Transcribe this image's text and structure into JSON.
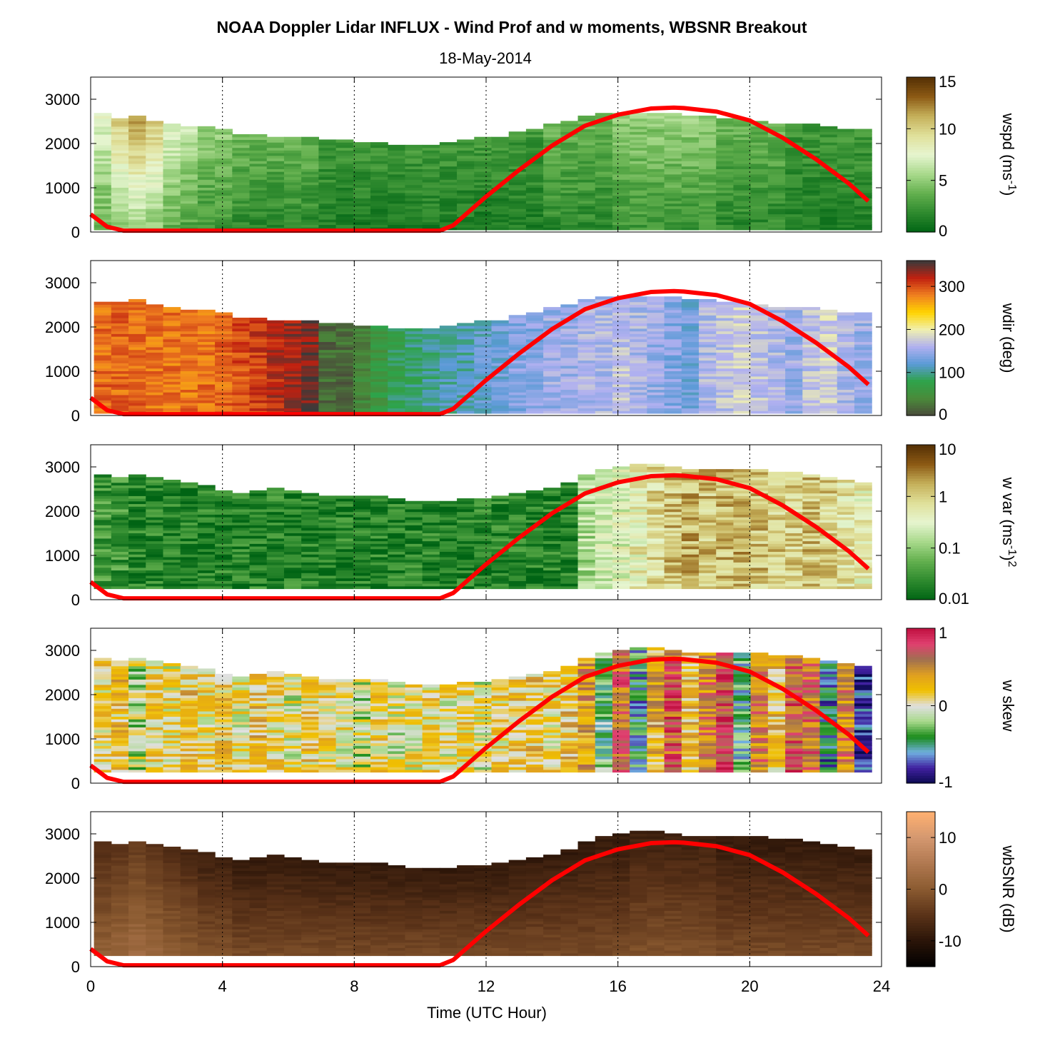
{
  "title": "NOAA Doppler Lidar INFLUX - Wind Prof and w moments, WBSNR Breakout",
  "subtitle": "18-May-2014",
  "chart_data": {
    "type": "heatmap",
    "xlabel": "Time (UTC Hour)",
    "xlim": [
      0,
      24
    ],
    "x_ticks": [
      "0",
      "4",
      "8",
      "12",
      "16",
      "20",
      "24"
    ],
    "ylim": [
      0,
      3500
    ],
    "y_ticks": [
      "0",
      "1000",
      "2000",
      "3000"
    ],
    "vertical_dotted_lines_at": [
      4,
      8,
      12,
      16,
      20,
      24
    ],
    "overlay_line": {
      "color": "#ff0000",
      "x": [
        0,
        0.5,
        1,
        2,
        4,
        8,
        10.6,
        11,
        12,
        13,
        14,
        15,
        16,
        17,
        17.7,
        18,
        19,
        20,
        21,
        22,
        23,
        23.6
      ],
      "y": [
        400,
        120,
        30,
        30,
        30,
        30,
        30,
        150,
        800,
        1400,
        1950,
        2400,
        2650,
        2790,
        2810,
        2800,
        2720,
        2520,
        2130,
        1650,
        1100,
        700
      ]
    },
    "panels": [
      {
        "name": "wspd",
        "colorbar_label": "wspd (ms",
        "colorbar_sup": "-1",
        "colorbar_tail": ")",
        "colorbar_ticks": [
          "15",
          "10",
          "5",
          "0"
        ],
        "colormap": [
          "#006414",
          "#2e8a2e",
          "#63b04e",
          "#a8d98b",
          "#e6f5d0",
          "#e0e09a",
          "#c5b05a",
          "#8c5a14",
          "#543005"
        ],
        "scale": "linear",
        "range": [
          0,
          15
        ],
        "top_height": [
          2650,
          2550,
          2600,
          2500,
          2450,
          2350,
          2350,
          2300,
          2200,
          2200,
          2150,
          2150,
          2100,
          2050,
          2050,
          2000,
          2000,
          1950,
          1950,
          1950,
          2000,
          2050,
          2100,
          2150,
          2250,
          2300,
          2400,
          2500,
          2600,
          2650,
          2650,
          2650,
          2650,
          2650,
          2600,
          2600,
          2550,
          2550,
          2500,
          2450,
          2400,
          2400,
          2350,
          2300,
          2300
        ],
        "values": [
          6,
          8,
          9,
          8,
          6,
          5,
          4,
          4,
          3,
          3,
          3,
          3,
          3,
          2,
          2,
          2,
          2,
          2,
          2,
          2,
          2,
          2,
          2,
          2,
          2,
          2,
          3,
          3,
          3,
          3,
          4,
          4,
          4,
          4,
          4,
          4,
          3,
          3,
          3,
          3,
          2,
          2,
          2,
          2,
          2
        ]
      },
      {
        "name": "wdir",
        "colorbar_label": "wdir (deg)",
        "colorbar_sup": "",
        "colorbar_tail": "",
        "colorbar_ticks": [
          "300",
          "200",
          "100",
          "0"
        ],
        "colormap": [
          "#4a4a3a",
          "#4a8a3a",
          "#2ea34a",
          "#5a9ad6",
          "#b0b0f0",
          "#f0f0b0",
          "#ffd400",
          "#f08020",
          "#c02010",
          "#3a3a3a"
        ],
        "scale": "linear",
        "range": [
          0,
          360
        ],
        "top_height": [
          2550,
          2550,
          2600,
          2500,
          2450,
          2350,
          2350,
          2300,
          2200,
          2200,
          2150,
          2150,
          2100,
          2050,
          2050,
          2000,
          2000,
          1950,
          1950,
          1950,
          2000,
          2050,
          2100,
          2150,
          2250,
          2300,
          2400,
          2500,
          2600,
          2650,
          2650,
          2650,
          2650,
          2650,
          2600,
          2600,
          2550,
          2550,
          2500,
          2450,
          2400,
          2400,
          2350,
          2300,
          2300
        ],
        "values": [
          290,
          290,
          290,
          285,
          285,
          285,
          285,
          290,
          300,
          310,
          320,
          330,
          340,
          20,
          20,
          40,
          60,
          80,
          90,
          100,
          110,
          110,
          120,
          130,
          140,
          140,
          150,
          150,
          160,
          160,
          170,
          160,
          150,
          140,
          130,
          160,
          170,
          180,
          170,
          160,
          150,
          170,
          180,
          160,
          150
        ]
      },
      {
        "name": "wvar",
        "colorbar_label": "w var (ms",
        "colorbar_sup": "-1",
        "colorbar_tail": ")",
        "colorbar_tail_sup": "2",
        "colorbar_ticks": [
          "10",
          "1",
          "0.1",
          "0.01"
        ],
        "colormap": [
          "#006414",
          "#2e8a2e",
          "#63b04e",
          "#a8d98b",
          "#e6f5d0",
          "#e0e09a",
          "#c5b05a",
          "#8c5a14",
          "#543005"
        ],
        "scale": "log",
        "range": [
          0.01,
          10
        ],
        "bottom_height": 250,
        "top_height": [
          2800,
          2750,
          2800,
          2750,
          2700,
          2650,
          2550,
          2450,
          2400,
          2450,
          2500,
          2450,
          2400,
          2350,
          2300,
          2350,
          2300,
          2250,
          2200,
          2200,
          2200,
          2250,
          2250,
          2300,
          2400,
          2450,
          2500,
          2600,
          2800,
          2950,
          3000,
          3050,
          3050,
          3000,
          2950,
          2950,
          2900,
          2950,
          2900,
          2850,
          2850,
          2800,
          2750,
          2700,
          2650
        ],
        "values": [
          0.03,
          0.03,
          0.02,
          0.02,
          0.02,
          0.02,
          0.02,
          0.02,
          0.02,
          0.02,
          0.02,
          0.02,
          0.02,
          0.02,
          0.02,
          0.02,
          0.02,
          0.02,
          0.02,
          0.02,
          0.02,
          0.02,
          0.02,
          0.02,
          0.02,
          0.02,
          0.02,
          0.02,
          0.15,
          0.2,
          0.3,
          0.5,
          0.8,
          1.2,
          1.5,
          1.2,
          1.3,
          1.5,
          1.2,
          1.0,
          0.9,
          1.2,
          1.0,
          0.7,
          0.5
        ]
      },
      {
        "name": "wskew",
        "colorbar_label": "w skew",
        "colorbar_sup": "",
        "colorbar_tail": "",
        "colorbar_ticks": [
          "1",
          "0",
          "-1"
        ],
        "colormap": [
          "#0a0a50",
          "#4020a0",
          "#70b0e0",
          "#1a8c1a",
          "#a8d98b",
          "#e0e0e0",
          "#f0c000",
          "#e0a020",
          "#a07050",
          "#e04070",
          "#c01040"
        ],
        "scale": "linear",
        "range": [
          -1,
          1
        ],
        "bottom_height": 250,
        "top_height": [
          2800,
          2750,
          2800,
          2750,
          2700,
          2650,
          2550,
          2450,
          2400,
          2450,
          2500,
          2450,
          2400,
          2350,
          2300,
          2350,
          2300,
          2250,
          2200,
          2200,
          2200,
          2250,
          2250,
          2300,
          2400,
          2450,
          2500,
          2600,
          2800,
          2950,
          3000,
          3050,
          3050,
          3000,
          2950,
          2950,
          2900,
          2950,
          2900,
          2850,
          2850,
          2800,
          2750,
          2700,
          2650
        ],
        "values": [
          0.1,
          0.2,
          -0.1,
          0.15,
          0.05,
          0.2,
          0.1,
          0.15,
          0.05,
          0.2,
          0.1,
          0.0,
          0.15,
          0.1,
          0.05,
          -0.1,
          0.1,
          0.0,
          0.05,
          0.1,
          0.05,
          0.1,
          0.0,
          0.1,
          0.15,
          0.2,
          0.1,
          0.2,
          0.4,
          -0.3,
          0.6,
          -0.5,
          0.3,
          0.7,
          0.2,
          0.5,
          0.8,
          -0.4,
          0.5,
          0.2,
          0.7,
          0.6,
          -0.6,
          0.5,
          -0.8
        ]
      },
      {
        "name": "wbSNR",
        "colorbar_label": "wbSNR (dB)",
        "colorbar_sup": "",
        "colorbar_tail": "",
        "colorbar_ticks": [
          "10",
          "0",
          "-10"
        ],
        "colormap": [
          "#000000",
          "#2a1408",
          "#5a3218",
          "#8a5a30",
          "#b07850",
          "#d49870",
          "#ffb070"
        ],
        "scale": "linear",
        "range": [
          -15,
          15
        ],
        "bottom_height": 250,
        "top_height": [
          2800,
          2750,
          2800,
          2750,
          2700,
          2650,
          2550,
          2450,
          2400,
          2450,
          2500,
          2450,
          2400,
          2350,
          2300,
          2350,
          2300,
          2250,
          2200,
          2200,
          2200,
          2250,
          2250,
          2300,
          2400,
          2450,
          2500,
          2600,
          2800,
          2950,
          3000,
          3050,
          3050,
          3000,
          2950,
          2950,
          2900,
          2950,
          2900,
          2850,
          2850,
          2800,
          2750,
          2700,
          2650
        ],
        "values": [
          -2,
          -1,
          0,
          -1,
          -2,
          -3,
          -4,
          -4,
          -5,
          -5,
          -5,
          -5,
          -5,
          -5,
          -5,
          -5,
          -5,
          -5,
          -5,
          -5,
          -5,
          -5,
          -5,
          -5,
          -5,
          -5,
          -5,
          -5,
          -5,
          -5,
          -5,
          -4,
          -4,
          -4,
          -4,
          -4,
          -5,
          -5,
          -5,
          -5,
          -5,
          -5,
          -5,
          -5,
          -5
        ]
      }
    ]
  }
}
